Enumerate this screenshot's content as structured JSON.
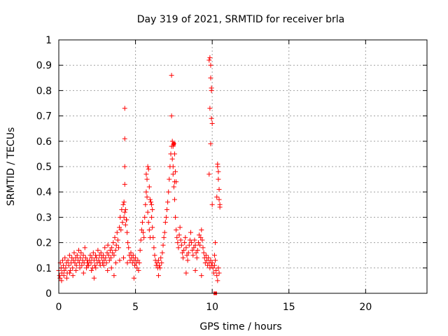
{
  "chart_data": {
    "type": "scatter",
    "title": "Day 319 of 2021, SRMTID for receiver brla",
    "xlabel": "GPS time / hours",
    "ylabel": "SRMTID / TECUs",
    "xlim": [
      0,
      24
    ],
    "ylim": [
      0,
      1
    ],
    "xticks": [
      0,
      5,
      10,
      15,
      20
    ],
    "xtick_labels": [
      "0",
      "5",
      "10",
      "15",
      "20"
    ],
    "yticks": [
      0,
      0.1,
      0.2,
      0.3,
      0.4,
      0.5,
      0.6,
      0.7,
      0.8,
      0.9,
      1
    ],
    "ytick_labels": [
      "0",
      "0.1",
      "0.2",
      "0.3",
      "0.4",
      "0.5",
      "0.6",
      "0.7",
      "0.8",
      "0.9",
      "1"
    ],
    "grid": true,
    "marker": "plus",
    "marker_color": "#ff0000",
    "series": [
      {
        "name": "SRMTID",
        "x": [
          0.0,
          0.05,
          0.1,
          0.15,
          0.2,
          0.25,
          0.3,
          0.35,
          0.4,
          0.45,
          0.5,
          0.55,
          0.6,
          0.65,
          0.7,
          0.75,
          0.8,
          0.85,
          0.9,
          0.95,
          1.0,
          1.05,
          1.1,
          1.15,
          1.2,
          1.25,
          1.3,
          1.35,
          1.4,
          1.45,
          1.5,
          1.55,
          1.6,
          1.65,
          1.7,
          1.75,
          1.8,
          1.85,
          1.9,
          1.95,
          2.0,
          2.05,
          2.1,
          2.15,
          2.2,
          2.25,
          2.3,
          2.35,
          2.4,
          2.45,
          2.5,
          2.55,
          2.6,
          2.65,
          2.7,
          2.75,
          2.8,
          2.85,
          2.9,
          2.95,
          3.0,
          3.05,
          3.1,
          3.15,
          3.2,
          3.25,
          3.3,
          3.35,
          3.4,
          3.45,
          3.5,
          3.55,
          3.6,
          3.65,
          3.7,
          3.75,
          3.8,
          3.85,
          3.9,
          3.95,
          4.0,
          4.05,
          4.1,
          4.15,
          4.2,
          4.25,
          4.3,
          4.35,
          4.4,
          4.45,
          4.5,
          4.55,
          4.6,
          4.65,
          4.7,
          4.75,
          4.8,
          4.85,
          4.9,
          4.95,
          5.0,
          5.05,
          5.1,
          5.15,
          5.2,
          5.25,
          5.3,
          5.35,
          5.4,
          5.45,
          5.5,
          5.55,
          5.6,
          5.65,
          5.7,
          5.75,
          5.8,
          5.85,
          5.9,
          5.95,
          6.0,
          6.05,
          6.1,
          6.15,
          6.2,
          6.25,
          6.3,
          6.35,
          6.4,
          6.45,
          6.5,
          6.55,
          6.6,
          6.65,
          6.7,
          6.75,
          6.8,
          6.85,
          6.9,
          6.95,
          7.0,
          7.05,
          7.1,
          7.15,
          7.2,
          7.25,
          7.3,
          7.35,
          7.4,
          7.45,
          7.5,
          7.55,
          7.6,
          7.65,
          7.7,
          7.75,
          7.8,
          7.85,
          7.9,
          7.95,
          8.0,
          8.05,
          8.1,
          8.15,
          8.2,
          8.25,
          8.3,
          8.35,
          8.4,
          8.45,
          8.5,
          8.55,
          8.6,
          8.65,
          8.7,
          8.75,
          8.8,
          8.85,
          8.9,
          8.95,
          9.0,
          9.05,
          9.1,
          9.15,
          9.2,
          9.25,
          9.3,
          9.35,
          9.4,
          9.45,
          9.5,
          9.55,
          9.6,
          9.65,
          9.7,
          9.75,
          9.8,
          9.85,
          9.9,
          9.95,
          10.0,
          10.05,
          10.1,
          10.15,
          10.2,
          10.25,
          10.3,
          10.35,
          10.4,
          10.45,
          0.08,
          0.18,
          0.33,
          0.52,
          0.71,
          0.92,
          1.12,
          1.37,
          1.61,
          1.87,
          2.13,
          2.41,
          2.68,
          2.93,
          3.18,
          3.43,
          3.72,
          3.97,
          4.22,
          4.47,
          4.3,
          4.3,
          4.3,
          4.3,
          4.25,
          4.35,
          4.42,
          5.8,
          5.85,
          5.75,
          5.9,
          5.95,
          5.7,
          6.05,
          6.1,
          7.35,
          7.35,
          7.4,
          7.45,
          7.5,
          7.55,
          7.6,
          7.55,
          7.45,
          7.65,
          9.8,
          9.85,
          9.9,
          9.9,
          9.95,
          9.95,
          9.85,
          9.95,
          10.0,
          9.9,
          9.8,
          10.0,
          10.35,
          10.35,
          10.4,
          10.4,
          10.45,
          10.45,
          10.5,
          10.3,
          10.2,
          10.15,
          10.5,
          2.3,
          3.6,
          4.9,
          6.5,
          8.3,
          8.9,
          9.3
        ],
        "y": [
          0.09,
          0.07,
          0.12,
          0.1,
          0.08,
          0.13,
          0.11,
          0.09,
          0.14,
          0.1,
          0.12,
          0.08,
          0.13,
          0.11,
          0.15,
          0.09,
          0.12,
          0.14,
          0.1,
          0.13,
          0.16,
          0.12,
          0.14,
          0.11,
          0.15,
          0.13,
          0.17,
          0.12,
          0.14,
          0.16,
          0.11,
          0.13,
          0.15,
          0.12,
          0.18,
          0.14,
          0.1,
          0.13,
          0.12,
          0.11,
          0.13,
          0.15,
          0.12,
          0.14,
          0.1,
          0.16,
          0.13,
          0.11,
          0.15,
          0.14,
          0.12,
          0.17,
          0.13,
          0.15,
          0.11,
          0.16,
          0.14,
          0.12,
          0.15,
          0.13,
          0.18,
          0.14,
          0.12,
          0.16,
          0.19,
          0.15,
          0.13,
          0.17,
          0.14,
          0.18,
          0.16,
          0.2,
          0.15,
          0.22,
          0.17,
          0.19,
          0.24,
          0.21,
          0.18,
          0.26,
          0.3,
          0.25,
          0.33,
          0.28,
          0.35,
          0.3,
          0.32,
          0.27,
          0.29,
          0.24,
          0.2,
          0.18,
          0.15,
          0.13,
          0.16,
          0.14,
          0.12,
          0.15,
          0.13,
          0.11,
          0.14,
          0.12,
          0.1,
          0.13,
          0.09,
          0.12,
          0.17,
          0.21,
          0.25,
          0.28,
          0.24,
          0.22,
          0.3,
          0.35,
          0.4,
          0.38,
          0.32,
          0.28,
          0.25,
          0.22,
          0.36,
          0.3,
          0.26,
          0.22,
          0.18,
          0.15,
          0.13,
          0.11,
          0.12,
          0.1,
          0.13,
          0.11,
          0.1,
          0.14,
          0.12,
          0.16,
          0.19,
          0.22,
          0.24,
          0.28,
          0.3,
          0.33,
          0.36,
          0.4,
          0.45,
          0.5,
          0.55,
          0.58,
          0.53,
          0.47,
          0.42,
          0.37,
          0.3,
          0.25,
          0.22,
          0.2,
          0.18,
          0.23,
          0.26,
          0.21,
          0.19,
          0.16,
          0.14,
          0.17,
          0.2,
          0.22,
          0.18,
          0.15,
          0.13,
          0.16,
          0.19,
          0.21,
          0.24,
          0.2,
          0.17,
          0.15,
          0.18,
          0.21,
          0.19,
          0.16,
          0.14,
          0.17,
          0.2,
          0.23,
          0.19,
          0.22,
          0.25,
          0.21,
          0.18,
          0.16,
          0.14,
          0.12,
          0.15,
          0.13,
          0.11,
          0.14,
          0.12,
          0.1,
          0.13,
          0.11,
          0.12,
          0.1,
          0.08,
          0.11,
          0.13,
          0.09,
          0.07,
          0.05,
          0.1,
          0.08,
          0.06,
          0.05,
          0.07,
          0.06,
          0.08,
          0.07,
          0.09,
          0.1,
          0.08,
          0.11,
          0.09,
          0.1,
          0.12,
          0.11,
          0.09,
          0.1,
          0.12,
          0.13,
          0.14,
          0.12,
          0.73,
          0.61,
          0.5,
          0.43,
          0.36,
          0.33,
          0.29,
          0.5,
          0.49,
          0.45,
          0.42,
          0.37,
          0.47,
          0.35,
          0.33,
          0.86,
          0.7,
          0.6,
          0.58,
          0.59,
          0.55,
          0.48,
          0.44,
          0.5,
          0.44,
          0.92,
          0.93,
          0.9,
          0.85,
          0.81,
          0.8,
          0.73,
          0.69,
          0.67,
          0.59,
          0.47,
          0.35,
          0.51,
          0.5,
          0.48,
          0.45,
          0.41,
          0.37,
          0.35,
          0.38,
          0.2,
          0.15,
          0.34,
          0.06,
          0.07,
          0.06,
          0.07,
          0.08,
          0.09,
          0.07
        ]
      }
    ],
    "square_markers": {
      "x": [
        7.5,
        10.2
      ],
      "y": [
        0.59,
        0.0
      ]
    }
  }
}
